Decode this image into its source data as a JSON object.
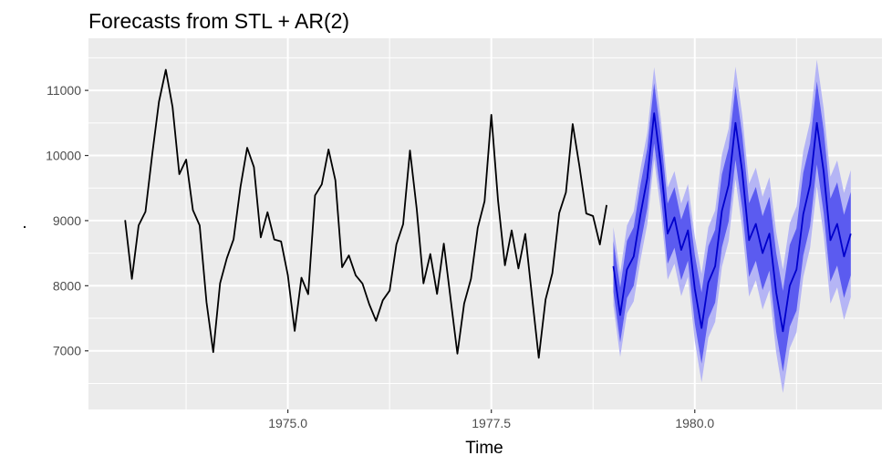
{
  "chart_data": {
    "type": "line",
    "title": "Forecasts from STL +  AR(2)",
    "xlabel": "Time",
    "ylabel": ".",
    "xlim": [
      1972.55,
      1982.3
    ],
    "ylim": [
      6100,
      11800
    ],
    "grid": true,
    "legend": "none",
    "x_ticks": [
      {
        "value": 1975.0,
        "label": "1975.0"
      },
      {
        "value": 1977.5,
        "label": "1977.5"
      },
      {
        "value": 1980.0,
        "label": "1980.0"
      }
    ],
    "x_minor_ticks": [
      1973.75,
      1976.25,
      1978.75,
      1981.25
    ],
    "y_ticks": [
      {
        "value": 7000,
        "label": "7000"
      },
      {
        "value": 8000,
        "label": "8000"
      },
      {
        "value": 9000,
        "label": "9000"
      },
      {
        "value": 10000,
        "label": "10000"
      },
      {
        "value": 11000,
        "label": "11000"
      }
    ],
    "y_minor_ticks": [
      6500,
      7500,
      8500,
      9500,
      10500,
      11500
    ],
    "colors": {
      "panel": "#ebebeb",
      "grid": "#ffffff",
      "history": "#000000",
      "forecast": "#0000cc",
      "band80": "#5b5bf0",
      "band95": "#b5b5f5"
    },
    "series": [
      {
        "kind": "history",
        "start": 1973.0,
        "step": 0.08333333,
        "values": [
          9007,
          8106,
          8928,
          9137,
          10017,
          10826,
          11317,
          10744,
          9713,
          9938,
          9161,
          8927,
          7750,
          6981,
          8038,
          8422,
          8714,
          9512,
          10120,
          9823,
          8743,
          9129,
          8710,
          8680,
          8162,
          7306,
          8124,
          7870,
          9387,
          9556,
          10093,
          9620,
          8285,
          8466,
          8160,
          8034,
          7717,
          7461,
          7776,
          7925,
          8634,
          8945,
          10078,
          9179,
          8037,
          8488,
          7874,
          8647,
          7792,
          6957,
          7726,
          8106,
          8890,
          9299,
          10625,
          9302,
          8314,
          8850,
          8265,
          8796,
          7836,
          6892,
          7791,
          8192,
          9115,
          9434,
          10484,
          9827,
          9110,
          9070,
          8633,
          9240
        ]
      },
      {
        "kind": "forecast",
        "start": 1979.0,
        "step": 0.08333333,
        "values": [
          8300,
          7550,
          8250,
          8450,
          9100,
          9650,
          10650,
          9850,
          8800,
          9050,
          8550,
          8850,
          7950,
          7350,
          8050,
          8300,
          9150,
          9550,
          10500,
          9750,
          8700,
          8950,
          8500,
          8800,
          7900,
          7300,
          8000,
          8250,
          9100,
          9550,
          10500,
          9750,
          8700,
          8950,
          8450,
          8800
        ],
        "band80_halfwidth": [
          390,
          420,
          440,
          450,
          455,
          460,
          462,
          463,
          464,
          465,
          465,
          466,
          525,
          545,
          555,
          560,
          562,
          564,
          565,
          566,
          566,
          567,
          567,
          568,
          605,
          620,
          628,
          632,
          634,
          636,
          637,
          638,
          638,
          639,
          639,
          640
        ],
        "band95_halfwidth": [
          600,
          645,
          675,
          690,
          698,
          703,
          706,
          708,
          709,
          710,
          711,
          712,
          800,
          832,
          848,
          856,
          860,
          862,
          864,
          865,
          866,
          866,
          867,
          867,
          925,
          948,
          960,
          965,
          968,
          970,
          972,
          973,
          974,
          975,
          975,
          976
        ]
      }
    ]
  }
}
